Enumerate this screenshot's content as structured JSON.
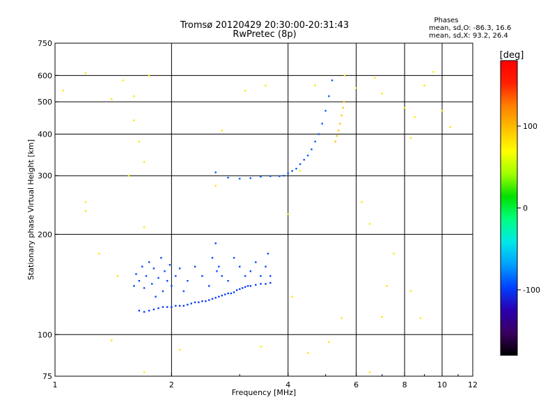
{
  "header": {
    "title_line1": "Tromsø 20120429 20:30:00-20:31:43",
    "title_line2": "RwPretec (8p)",
    "phases_title": "Phases",
    "phases_line1": "mean, sd,O: -86.3, 16.6",
    "phases_line2": "mean, sd,X:  93.2, 26.4"
  },
  "colorbar": {
    "label": "[deg]",
    "range": [
      -180,
      180
    ],
    "ticks": [
      {
        "value": 100,
        "label": "100"
      },
      {
        "value": 0,
        "label": "0"
      },
      {
        "value": -100,
        "label": "-100"
      }
    ],
    "colors": [
      "#000000",
      "#3a0060",
      "#2a00b0",
      "#0040ff",
      "#00a0ff",
      "#00e8e8",
      "#00ff80",
      "#00e000",
      "#a0ff00",
      "#ffff00",
      "#ffc000",
      "#ff8000",
      "#ff2000",
      "#ff0000"
    ]
  },
  "chart_data": {
    "type": "scatter",
    "title": "Tromsø 20120429 20:30:00-20:31:43",
    "subtitle": "RwPretec (8p)",
    "xlabel": "Frequency [MHz]",
    "ylabel": "Stationary phase Virtual Height [km]",
    "x_scale": "log",
    "y_scale": "log",
    "xlim": [
      1,
      12
    ],
    "ylim": [
      75,
      750
    ],
    "x_ticks": [
      {
        "value": 1,
        "label": "1"
      },
      {
        "value": 2,
        "label": "2"
      },
      {
        "value": 4,
        "label": "4"
      },
      {
        "value": 6,
        "label": "6"
      },
      {
        "value": 8,
        "label": "8"
      },
      {
        "value": 10,
        "label": "10"
      },
      {
        "value": 12,
        "label": "12"
      }
    ],
    "y_ticks": [
      {
        "value": 75,
        "label": "75"
      },
      {
        "value": 100,
        "label": "100"
      },
      {
        "value": 200,
        "label": "200"
      },
      {
        "value": 300,
        "label": "300"
      },
      {
        "value": 400,
        "label": "400"
      },
      {
        "value": 500,
        "label": "500"
      },
      {
        "value": 600,
        "label": "600"
      },
      {
        "value": 750,
        "label": "750"
      }
    ],
    "x_gridlines": [
      2,
      4,
      6,
      8,
      10
    ],
    "y_gridlines": [
      100,
      200,
      300,
      400,
      500,
      600
    ],
    "grid": true,
    "series": [
      {
        "trace": "o_mode_E_region",
        "phase": -100,
        "points": [
          [
            1.65,
            118
          ],
          [
            1.7,
            117
          ],
          [
            1.75,
            118
          ],
          [
            1.8,
            119
          ],
          [
            1.85,
            120
          ],
          [
            1.9,
            121
          ],
          [
            1.95,
            121
          ],
          [
            2.0,
            121
          ],
          [
            2.05,
            122
          ],
          [
            2.1,
            122
          ],
          [
            2.15,
            122
          ],
          [
            2.2,
            123
          ],
          [
            2.25,
            124
          ],
          [
            2.3,
            125
          ],
          [
            2.35,
            125
          ],
          [
            2.4,
            126
          ],
          [
            2.45,
            126
          ],
          [
            2.5,
            127
          ],
          [
            2.55,
            128
          ],
          [
            2.6,
            129
          ],
          [
            2.65,
            130
          ],
          [
            2.7,
            131
          ],
          [
            2.75,
            132
          ],
          [
            2.8,
            133
          ],
          [
            2.85,
            133
          ],
          [
            2.9,
            134
          ],
          [
            2.95,
            136
          ],
          [
            3.0,
            137
          ],
          [
            3.05,
            138
          ],
          [
            3.1,
            139
          ],
          [
            3.15,
            140
          ],
          [
            3.2,
            140
          ],
          [
            3.3,
            141
          ],
          [
            3.4,
            142
          ],
          [
            3.5,
            142
          ],
          [
            3.6,
            143
          ]
        ]
      },
      {
        "trace": "o_mode_E_spread",
        "phase": -95,
        "points": [
          [
            1.6,
            140
          ],
          [
            1.62,
            152
          ],
          [
            1.65,
            145
          ],
          [
            1.68,
            160
          ],
          [
            1.7,
            138
          ],
          [
            1.72,
            150
          ],
          [
            1.75,
            165
          ],
          [
            1.78,
            142
          ],
          [
            1.8,
            158
          ],
          [
            1.82,
            130
          ],
          [
            1.85,
            148
          ],
          [
            1.88,
            170
          ],
          [
            1.9,
            135
          ],
          [
            1.92,
            155
          ],
          [
            1.95,
            145
          ],
          [
            1.98,
            162
          ],
          [
            2.0,
            140
          ],
          [
            2.05,
            150
          ],
          [
            2.1,
            158
          ],
          [
            2.15,
            135
          ],
          [
            2.2,
            145
          ],
          [
            2.3,
            160
          ],
          [
            2.4,
            150
          ],
          [
            2.5,
            140
          ],
          [
            2.55,
            170
          ],
          [
            2.6,
            188
          ],
          [
            2.62,
            155
          ],
          [
            2.65,
            160
          ],
          [
            2.7,
            150
          ],
          [
            2.8,
            145
          ],
          [
            2.9,
            170
          ],
          [
            3.0,
            160
          ],
          [
            3.1,
            150
          ],
          [
            3.2,
            155
          ],
          [
            3.3,
            165
          ],
          [
            3.4,
            150
          ],
          [
            3.5,
            160
          ],
          [
            3.55,
            175
          ],
          [
            3.6,
            150
          ]
        ]
      },
      {
        "trace": "o_mode_F_region",
        "phase": -90,
        "points": [
          [
            2.6,
            307
          ],
          [
            2.8,
            296
          ],
          [
            3.0,
            294
          ],
          [
            3.2,
            295
          ],
          [
            3.4,
            298
          ],
          [
            3.6,
            299
          ],
          [
            3.8,
            299
          ],
          [
            3.9,
            300
          ],
          [
            4.0,
            305
          ],
          [
            4.1,
            310
          ],
          [
            4.2,
            315
          ],
          [
            4.3,
            325
          ],
          [
            4.4,
            335
          ],
          [
            4.5,
            345
          ],
          [
            4.6,
            360
          ],
          [
            4.7,
            380
          ],
          [
            4.8,
            400
          ],
          [
            4.9,
            430
          ],
          [
            5.0,
            470
          ],
          [
            5.1,
            520
          ],
          [
            5.2,
            580
          ]
        ]
      },
      {
        "trace": "x_mode_F_region",
        "phase": 95,
        "points": [
          [
            5.3,
            380
          ],
          [
            5.35,
            395
          ],
          [
            5.4,
            410
          ],
          [
            5.45,
            430
          ],
          [
            5.5,
            455
          ],
          [
            5.55,
            480
          ],
          [
            5.58,
            500
          ]
        ]
      },
      {
        "trace": "scattered_echoes",
        "phase": 80,
        "points": [
          [
            1.05,
            540
          ],
          [
            1.2,
            610
          ],
          [
            1.4,
            510
          ],
          [
            1.5,
            580
          ],
          [
            1.6,
            520
          ],
          [
            1.6,
            440
          ],
          [
            1.65,
            380
          ],
          [
            1.7,
            330
          ],
          [
            1.75,
            600
          ],
          [
            1.3,
            175
          ],
          [
            1.45,
            150
          ],
          [
            1.55,
            300
          ],
          [
            1.7,
            210
          ],
          [
            1.2,
            250
          ],
          [
            1.2,
            235
          ],
          [
            2.6,
            280
          ],
          [
            3.1,
            540
          ],
          [
            3.5,
            560
          ],
          [
            4.0,
            230
          ],
          [
            4.1,
            130
          ],
          [
            4.7,
            560
          ],
          [
            5.6,
            600
          ],
          [
            6.0,
            550
          ],
          [
            6.2,
            250
          ],
          [
            6.7,
            590
          ],
          [
            7.0,
            530
          ],
          [
            7.5,
            175
          ],
          [
            8.0,
            480
          ],
          [
            8.5,
            450
          ],
          [
            8.3,
            390
          ],
          [
            9.0,
            560
          ],
          [
            9.5,
            615
          ],
          [
            10.0,
            470
          ],
          [
            10.5,
            420
          ],
          [
            6.5,
            215
          ],
          [
            7.2,
            140
          ],
          [
            8.3,
            135
          ],
          [
            8.8,
            112
          ],
          [
            4.5,
            88
          ],
          [
            5.1,
            95
          ],
          [
            3.4,
            92
          ],
          [
            2.1,
            90
          ],
          [
            1.7,
            77
          ],
          [
            1.4,
            96
          ],
          [
            6.5,
            77
          ],
          [
            5.5,
            112
          ],
          [
            7.0,
            113
          ],
          [
            4.3,
            310
          ],
          [
            2.7,
            410
          ]
        ]
      }
    ],
    "color_encoding": "phase",
    "color_unit": "[deg]"
  }
}
